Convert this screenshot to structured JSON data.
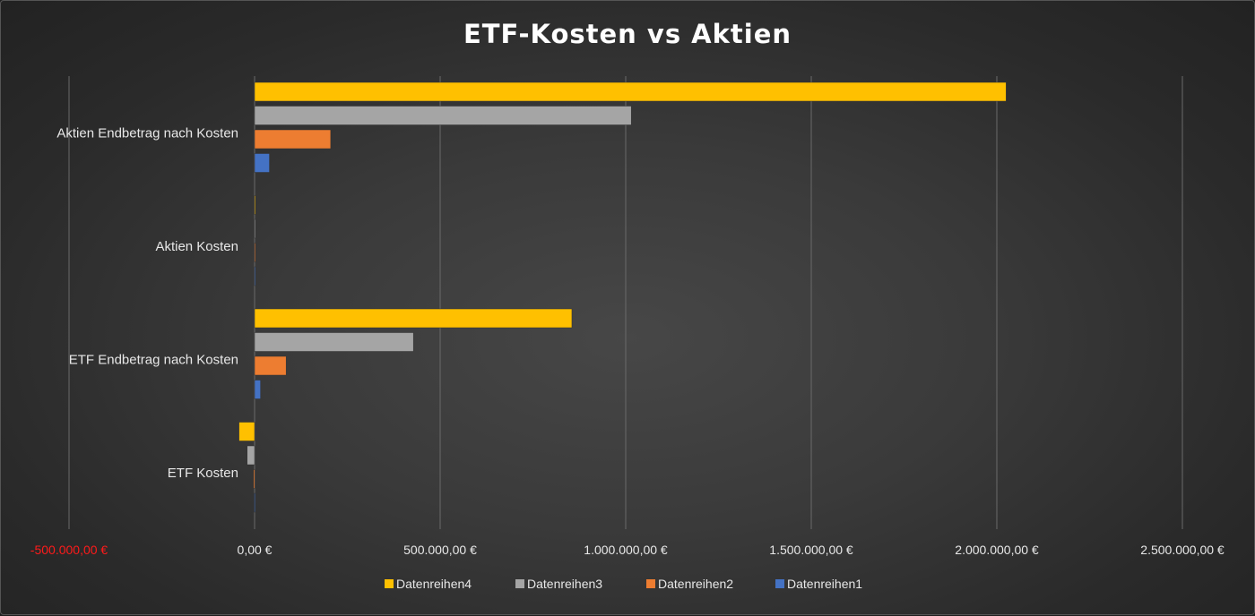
{
  "chart_data": {
    "type": "bar",
    "orientation": "horizontal",
    "title": "ETF-Kosten vs Aktien",
    "categories": [
      "ETF Kosten",
      "ETF Endbetrag nach Kosten",
      "Aktien Kosten",
      "Aktien Endbetrag nach Kosten"
    ],
    "series": [
      {
        "name": "Datenreihen1",
        "color": "#4472c4",
        "values": [
          -1000,
          16000,
          1000,
          40000
        ]
      },
      {
        "name": "Datenreihen2",
        "color": "#ed7d31",
        "values": [
          -3000,
          85000,
          1000,
          205000
        ]
      },
      {
        "name": "Datenreihen3",
        "color": "#a5a5a5",
        "values": [
          -20000,
          428000,
          1000,
          1015000
        ]
      },
      {
        "name": "Datenreihen4",
        "color": "#ffc000",
        "values": [
          -42000,
          855000,
          1000,
          2025000
        ]
      }
    ],
    "xlim": [
      -500000,
      2500000
    ],
    "xticks": [
      {
        "value": -500000,
        "label": "-500.000,00 €",
        "negative": true
      },
      {
        "value": 0,
        "label": "0,00 €"
      },
      {
        "value": 500000,
        "label": "500.000,00 €"
      },
      {
        "value": 1000000,
        "label": "1.000.000,00 €"
      },
      {
        "value": 1500000,
        "label": "1.500.000,00 €"
      },
      {
        "value": 2000000,
        "label": "2.000.000,00 €"
      },
      {
        "value": 2500000,
        "label": "2.500.000,00 €"
      }
    ],
    "legend_position": "bottom",
    "legend_order": [
      "Datenreihen4",
      "Datenreihen3",
      "Datenreihen2",
      "Datenreihen1"
    ],
    "grid": true,
    "background": "dark radial gradient"
  }
}
